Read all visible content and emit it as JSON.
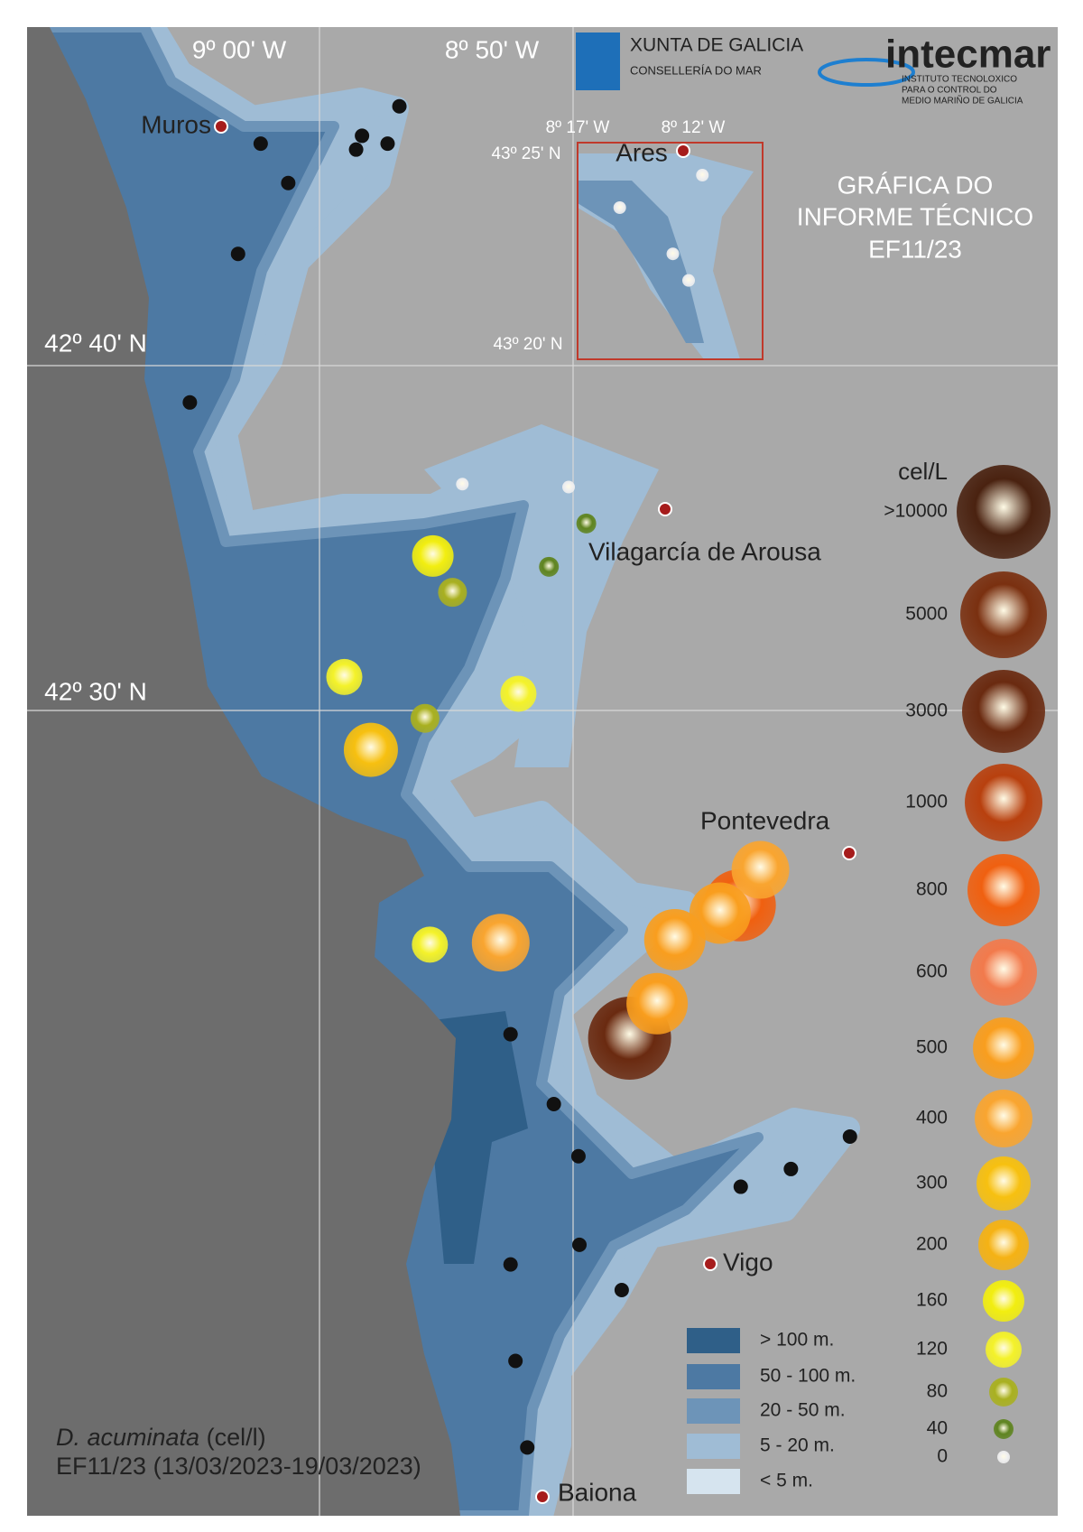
{
  "coordinates": {
    "lon": [
      "9º 00' W",
      "8º 50' W"
    ],
    "lat": [
      "42º 40' N",
      "42º 30' N"
    ]
  },
  "inset": {
    "lon": [
      "8º 17' W",
      "8º 12' W"
    ],
    "lat": [
      "43º 25' N",
      "43º 20' N"
    ],
    "place": "Ares",
    "stations": [
      {
        "value": 0
      },
      {
        "value": 0
      },
      {
        "value": 0
      },
      {
        "value": 0
      }
    ]
  },
  "logos": {
    "xunta": "XUNTA DE GALICIA",
    "xunta_sub": "CONSELLERÍA DO MAR",
    "intecmar": "intecmar",
    "intecmar_sub": [
      "INSTITUTO TECNOLOXICO",
      "PARA O CONTROL DO",
      "MEDIO MARIÑO DE GALICIA"
    ]
  },
  "report_label": [
    "GRÁFICA DO",
    "INFORME TÉCNICO",
    "EF11/23"
  ],
  "places": [
    "Muros",
    "Vilagarcía de Arousa",
    "Pontevedra",
    "Vigo",
    "Baiona"
  ],
  "concentration_legend": {
    "title": "cel/L",
    "levels": [
      {
        "value": 10000,
        "label": ">10000",
        "color": "#4a2210"
      },
      {
        "value": 5000,
        "color": "#7a3010"
      },
      {
        "value": 3000,
        "color": "#6a2a10"
      },
      {
        "value": 1000,
        "color": "#b8400e"
      },
      {
        "value": 800,
        "color": "#f06010"
      },
      {
        "value": 600,
        "color": "#f27a4c"
      },
      {
        "value": 500,
        "color": "#f99e1e"
      },
      {
        "value": 400,
        "color": "#f9a530"
      },
      {
        "value": 300,
        "color": "#f7c010"
      },
      {
        "value": 200,
        "color": "#f5b214"
      },
      {
        "value": 160,
        "color": "#f2ee10"
      },
      {
        "value": 120,
        "color": "#f4f22a"
      },
      {
        "value": 80,
        "color": "#a9b020"
      },
      {
        "value": 40,
        "color": "#5f8420"
      },
      {
        "value": 0,
        "color": "#f0f0f0"
      }
    ]
  },
  "depth_legend": [
    "> 100 m.",
    "50 - 100 m.",
    "20 - 50 m.",
    "5 - 20 m.",
    "< 5 m."
  ],
  "caption": {
    "species": "D. acuminata",
    "unit": "(cel/l)",
    "period": "EF11/23 (13/03/2023-19/03/2023)"
  },
  "stations": [
    {
      "value": 0
    },
    {
      "value": 0
    },
    {
      "value": 40
    },
    {
      "value": 40
    },
    {
      "value": 160
    },
    {
      "value": 80
    },
    {
      "value": 120
    },
    {
      "value": 120
    },
    {
      "value": 80
    },
    {
      "value": 300
    },
    {
      "value": 120
    },
    {
      "value": 400
    },
    {
      "value": 3000
    },
    {
      "value": 500
    },
    {
      "value": 500
    },
    {
      "value": 800
    },
    {
      "value": 500
    },
    {
      "value": 400
    }
  ]
}
